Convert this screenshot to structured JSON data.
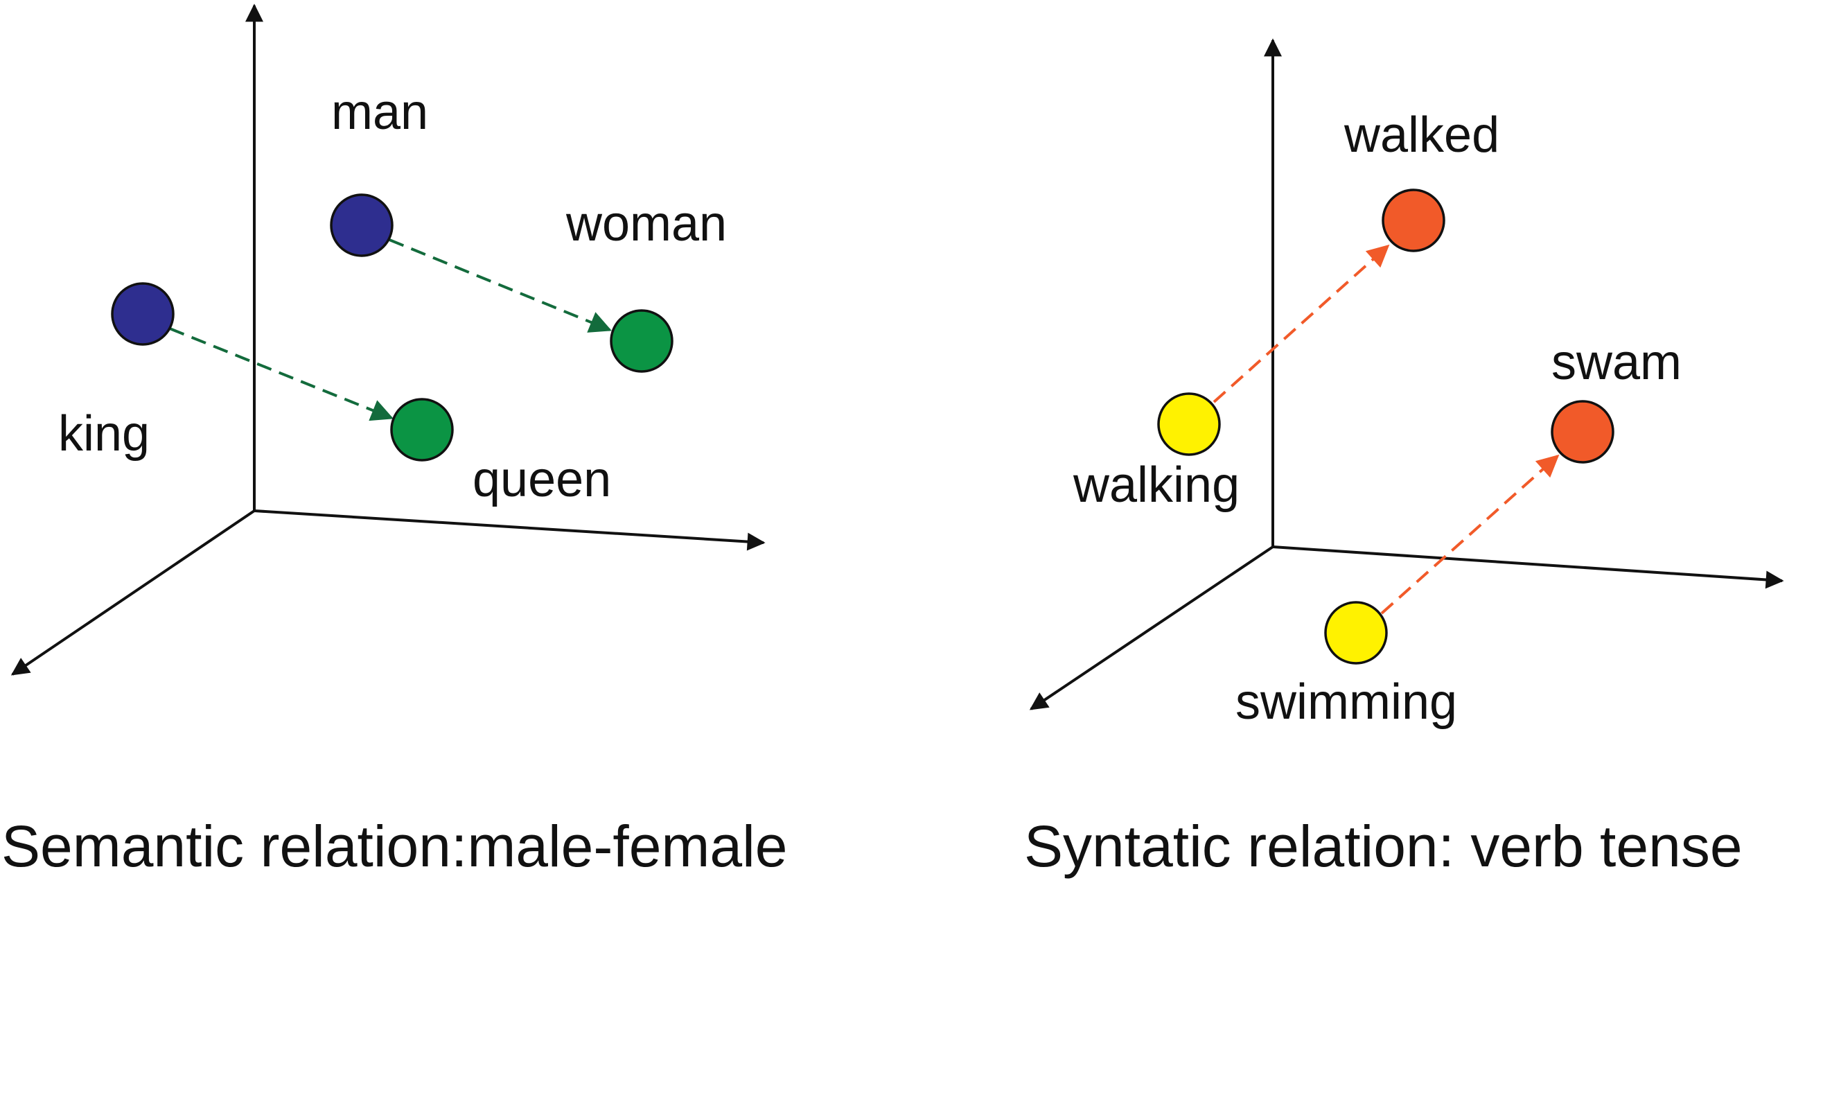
{
  "panels": [
    {
      "caption": "Semantic relation:male-female",
      "words": {
        "man": "man",
        "woman": "woman",
        "king": "king",
        "queen": "queen"
      },
      "colors": {
        "male": "#2e2e8f",
        "female": "#0b9444",
        "arrow": "#136b3c"
      }
    },
    {
      "caption": "Syntatic relation: verb tense",
      "words": {
        "walked": "walked",
        "swam": "swam",
        "walking": "walking",
        "swimming": "swimming"
      },
      "colors": {
        "present": "#fff200",
        "past": "#f15a29",
        "arrow": "#f15a29"
      }
    }
  ]
}
